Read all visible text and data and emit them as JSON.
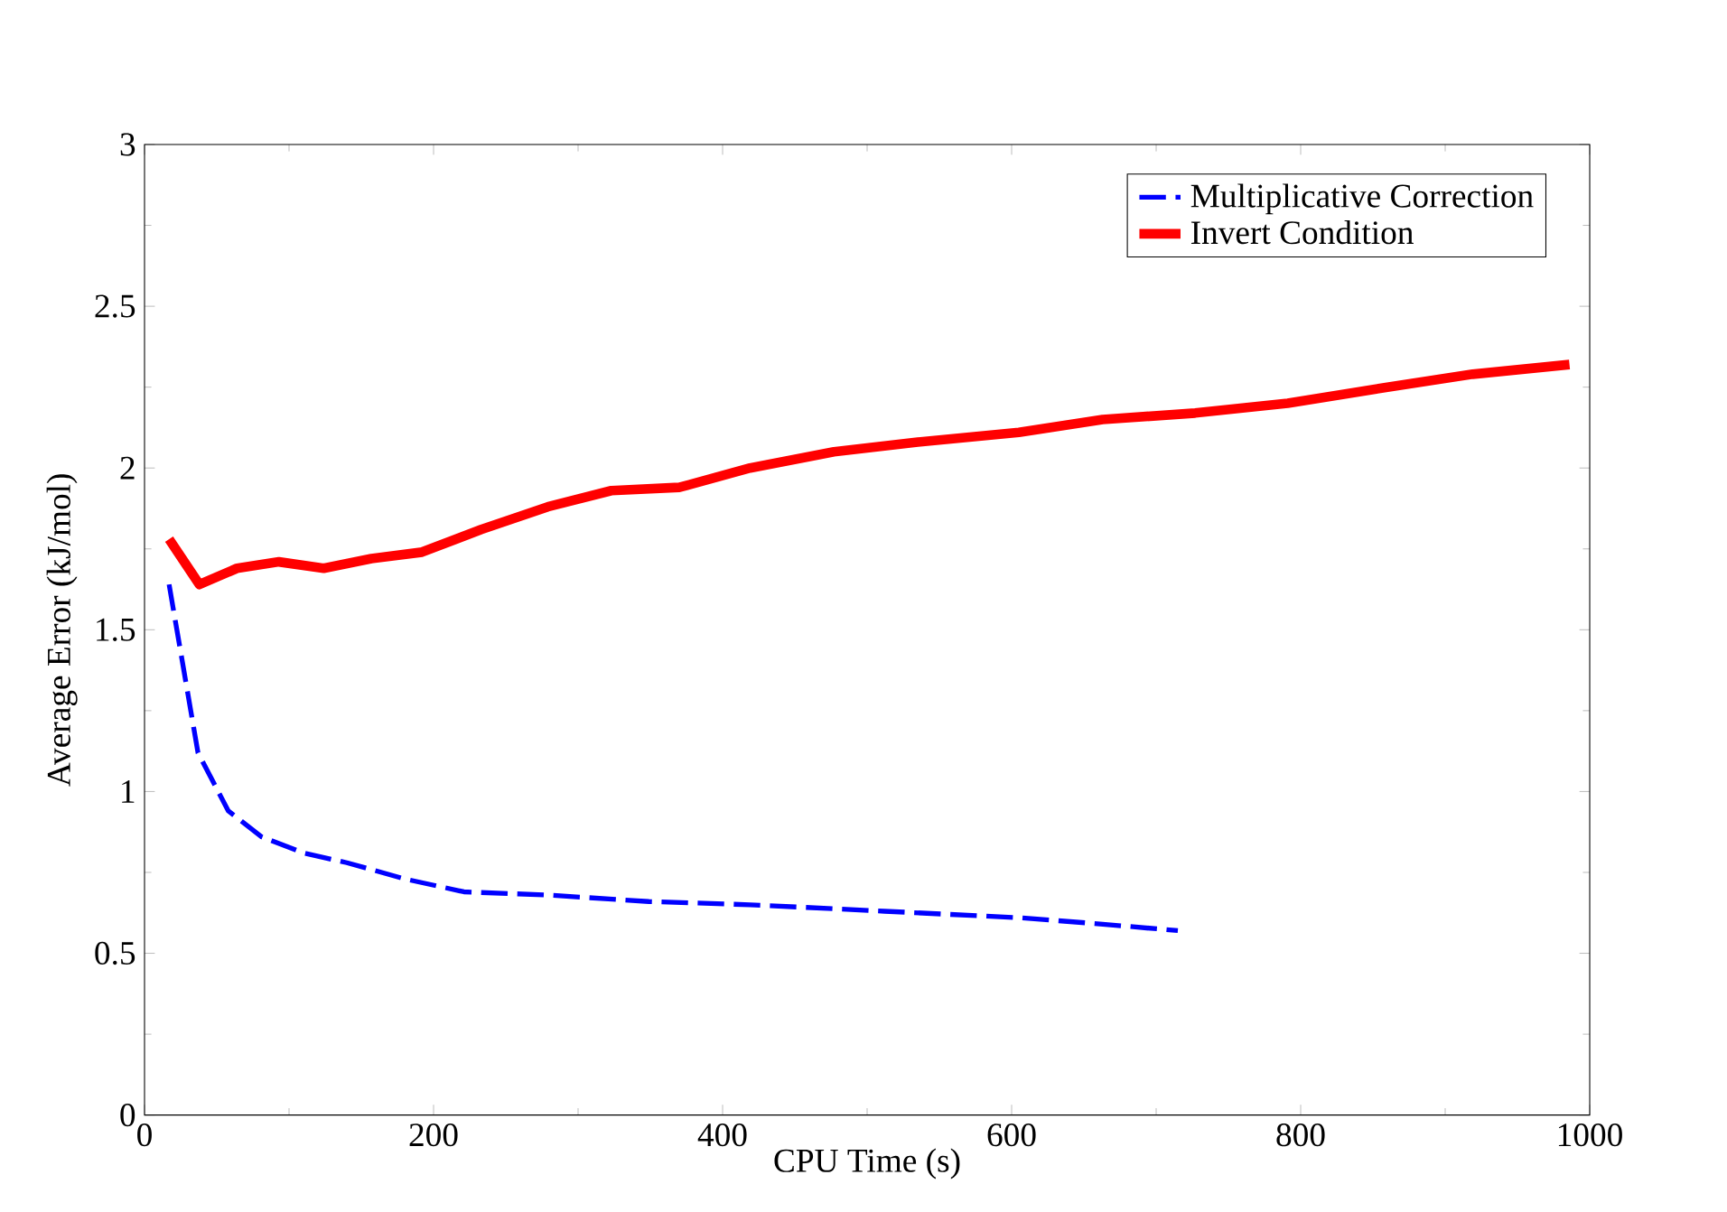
{
  "chart_data": {
    "type": "line",
    "xlabel": "CPU Time (s)",
    "ylabel": "Average Error (kJ/mol)",
    "xlim": [
      0,
      1000
    ],
    "ylim": [
      0,
      3
    ],
    "xticks": [
      0,
      200,
      400,
      600,
      800,
      1000
    ],
    "yticks": [
      0,
      0.5,
      1,
      1.5,
      2,
      2.5,
      3
    ],
    "legend": "top right",
    "grid": false,
    "marker": "none",
    "series": [
      {
        "name": "Multiplicative Correction",
        "color": "#0000ff",
        "line_style": "dashed",
        "x": [
          17,
          37,
          58,
          81,
          110,
          140,
          180,
          221,
          279,
          349,
          419,
          512,
          605,
          663,
          715
        ],
        "values": [
          1.64,
          1.12,
          0.94,
          0.86,
          0.81,
          0.78,
          0.73,
          0.69,
          0.68,
          0.66,
          0.65,
          0.63,
          0.61,
          0.59,
          0.57
        ]
      },
      {
        "name": "Invert Condition",
        "color": "#ff0000",
        "line_style": "solid",
        "x": [
          17,
          38,
          64,
          93,
          124,
          157,
          192,
          233,
          279,
          323,
          370,
          419,
          477,
          535,
          605,
          663,
          727,
          791,
          860,
          919,
          986
        ],
        "values": [
          1.78,
          1.64,
          1.69,
          1.71,
          1.69,
          1.72,
          1.74,
          1.81,
          1.88,
          1.93,
          1.94,
          2.0,
          2.05,
          2.08,
          2.11,
          2.15,
          2.17,
          2.2,
          2.25,
          2.29,
          2.32
        ]
      }
    ]
  }
}
